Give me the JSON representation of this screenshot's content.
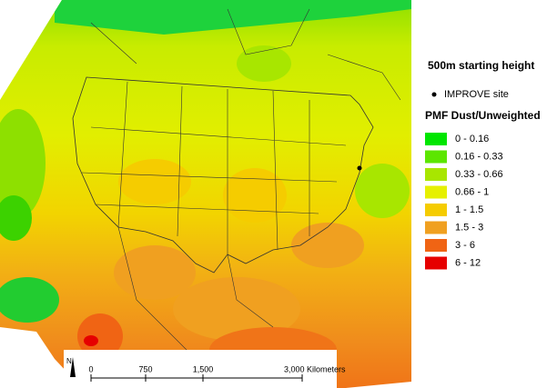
{
  "title": "500m starting height",
  "site_legend": "IMPROVE site",
  "legend": {
    "title": "PMF Dust/Unweighted",
    "items": [
      {
        "label": "0 - 0.16",
        "color": "#00e600"
      },
      {
        "label": "0.16 - 0.33",
        "color": "#5ce600"
      },
      {
        "label": "0.33 - 0.66",
        "color": "#a8e600"
      },
      {
        "label": "0.66 - 1",
        "color": "#e6f000"
      },
      {
        "label": "1 - 1.5",
        "color": "#f5cc00"
      },
      {
        "label": "1.5 - 3",
        "color": "#f0a020"
      },
      {
        "label": "3 - 6",
        "color": "#f06414"
      },
      {
        "label": "6 - 12",
        "color": "#e60000"
      }
    ]
  },
  "scale_bar": {
    "labels": [
      "0",
      "750",
      "1,500",
      "3,000 Kilometers"
    ]
  },
  "north": "N"
}
